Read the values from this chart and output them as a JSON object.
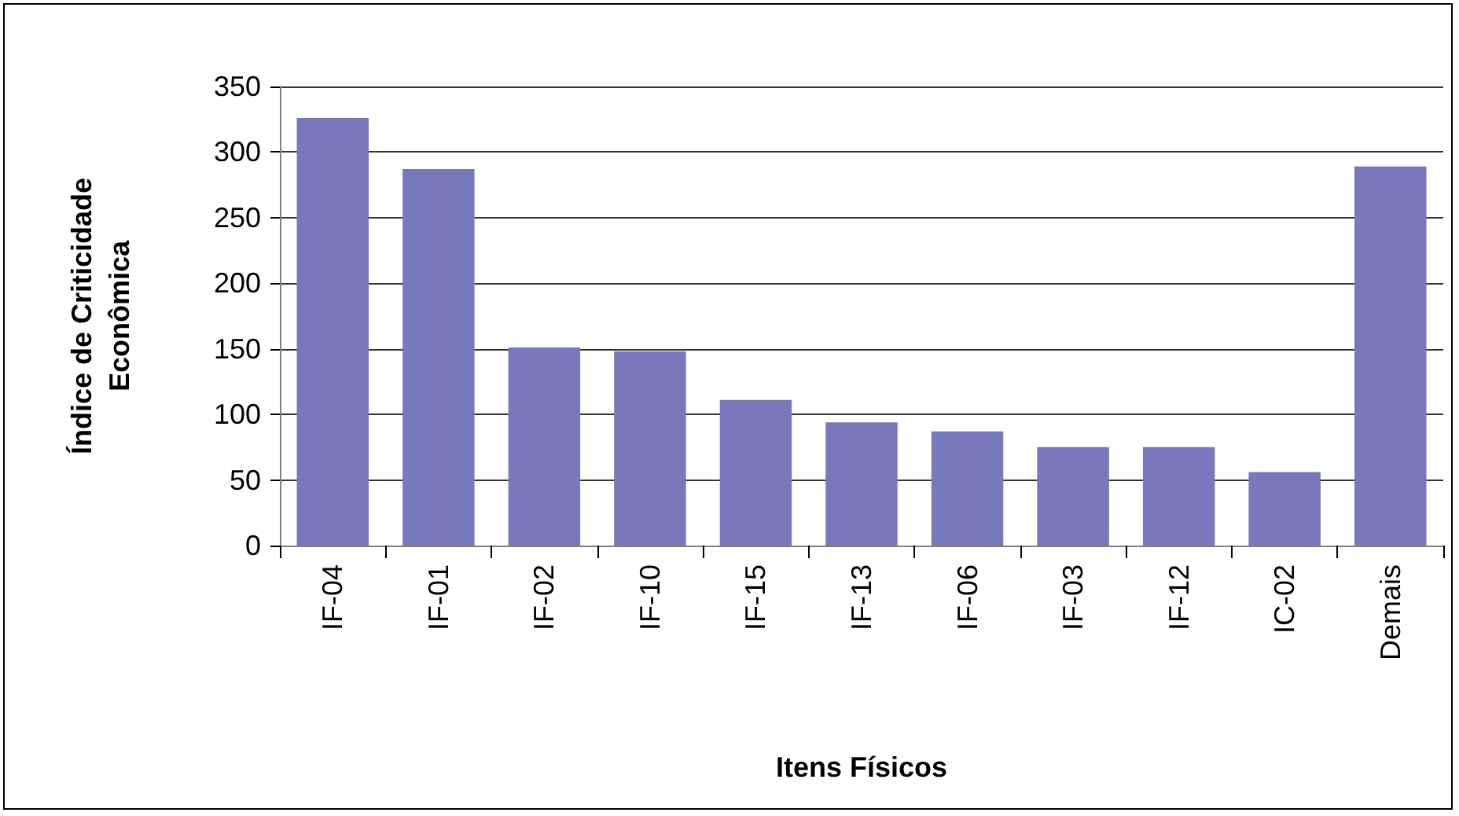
{
  "chart_data": {
    "type": "bar",
    "xlabel": "Itens Físicos",
    "ylabel": "Índice de Criticidade\nEconômica",
    "categories": [
      "IF-04",
      "IF-01",
      "IF-02",
      "IF-10",
      "IF-15",
      "IF-13",
      "IF-06",
      "IF-03",
      "IF-12",
      "IC-02",
      "Demais"
    ],
    "values": [
      326,
      287,
      151,
      148,
      111,
      94,
      87,
      75,
      75,
      56,
      289
    ],
    "color": "#7878bc",
    "ylim": [
      0,
      350
    ],
    "yticks": [
      0,
      50,
      100,
      150,
      200,
      250,
      300,
      350
    ],
    "grid": "y"
  }
}
